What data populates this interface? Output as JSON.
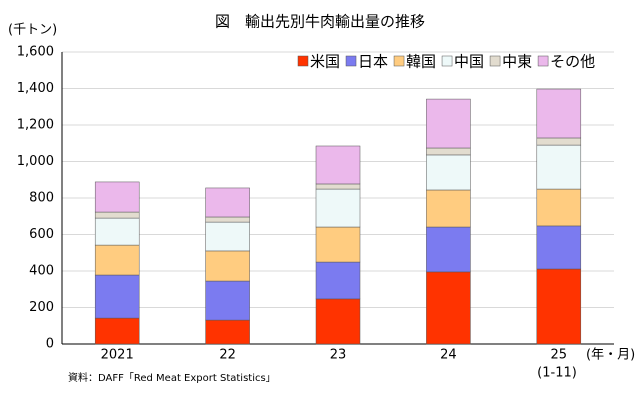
{
  "chart_data": {
    "type": "stacked-bar",
    "title": "図　輸出先別牛肉輸出量の推移",
    "y_label": "(千トン)",
    "x_label": "(年・月)",
    "x_sublabel": "(1-11)",
    "source": "資料：DAFF「Red Meat Export Statistics」",
    "categories": [
      "2021",
      "22",
      "23",
      "24",
      "25"
    ],
    "series": [
      {
        "name": "米国",
        "color": "#ff3300",
        "values": [
          142,
          131,
          247,
          395,
          411
        ]
      },
      {
        "name": "日本",
        "color": "#7b7bf0",
        "values": [
          236,
          214,
          202,
          246,
          236
        ]
      },
      {
        "name": "韓国",
        "color": "#ffcc80",
        "values": [
          164,
          165,
          192,
          203,
          202
        ]
      },
      {
        "name": "中国",
        "color": "#eef9f9",
        "values": [
          148,
          158,
          208,
          192,
          241
        ]
      },
      {
        "name": "中東",
        "color": "#e2dccf",
        "values": [
          33,
          28,
          28,
          38,
          39
        ]
      },
      {
        "name": "その他",
        "color": "#ebb8eb",
        "values": [
          165,
          159,
          208,
          268,
          268
        ]
      }
    ],
    "ylim": [
      0,
      1600
    ],
    "yticks": [
      0,
      200,
      400,
      600,
      800,
      {
        "value": 1000,
        "label": "1,000"
      },
      {
        "value": 1200,
        "label": "1,200"
      },
      {
        "value": 1400,
        "label": "1,400"
      },
      {
        "value": 1600,
        "label": "1,600"
      }
    ],
    "grid": true
  }
}
